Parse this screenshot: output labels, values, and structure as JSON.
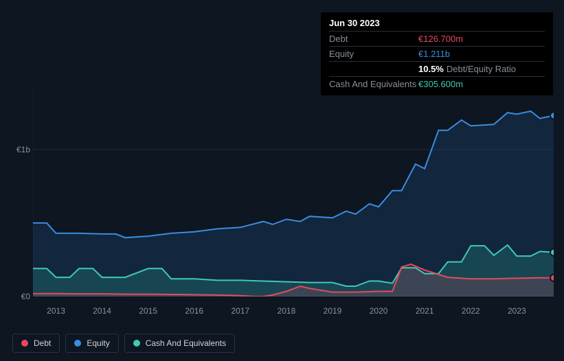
{
  "tooltip": {
    "date": "Jun 30 2023",
    "rows": {
      "debt": {
        "label": "Debt",
        "value": "€126.700m"
      },
      "equity": {
        "label": "Equity",
        "value": "€1.211b"
      },
      "ratio": {
        "pct": "10.5%",
        "label": "Debt/Equity Ratio"
      },
      "cash": {
        "label": "Cash And Equivalents",
        "value": "€305.600m"
      }
    }
  },
  "chart": {
    "type": "area",
    "background_color": "#0e1621",
    "grid_color": "#202a35",
    "ylim": [
      0,
      1400
    ],
    "y_ticks": [
      {
        "v": 0,
        "label": "€0"
      },
      {
        "v": 1000,
        "label": "€1b"
      }
    ],
    "x": {
      "min": 2012.5,
      "max": 2023.8,
      "ticks": [
        2013,
        2014,
        2015,
        2016,
        2017,
        2018,
        2019,
        2020,
        2021,
        2022,
        2023
      ]
    },
    "cursor_x": 2023.5,
    "series": {
      "debt": {
        "label": "Debt",
        "color": "#e8495f",
        "points": [
          [
            2012.5,
            20
          ],
          [
            2013.0,
            20
          ],
          [
            2013.5,
            18
          ],
          [
            2014.0,
            18
          ],
          [
            2014.5,
            16
          ],
          [
            2015.0,
            16
          ],
          [
            2015.5,
            14
          ],
          [
            2016.0,
            12
          ],
          [
            2016.5,
            10
          ],
          [
            2017.0,
            6
          ],
          [
            2017.3,
            0
          ],
          [
            2017.5,
            0
          ],
          [
            2017.7,
            10
          ],
          [
            2018.0,
            35
          ],
          [
            2018.3,
            70
          ],
          [
            2018.5,
            55
          ],
          [
            2019.0,
            30
          ],
          [
            2019.5,
            30
          ],
          [
            2020.0,
            35
          ],
          [
            2020.3,
            35
          ],
          [
            2020.5,
            200
          ],
          [
            2020.7,
            220
          ],
          [
            2021.0,
            180
          ],
          [
            2021.5,
            130
          ],
          [
            2022.0,
            120
          ],
          [
            2022.5,
            120
          ],
          [
            2023.0,
            124
          ],
          [
            2023.5,
            127
          ],
          [
            2023.8,
            127
          ]
        ]
      },
      "equity": {
        "label": "Equity",
        "color": "#3a8de0",
        "points": [
          [
            2012.5,
            500
          ],
          [
            2012.8,
            500
          ],
          [
            2013.0,
            430
          ],
          [
            2013.5,
            430
          ],
          [
            2014.0,
            425
          ],
          [
            2014.3,
            425
          ],
          [
            2014.5,
            400
          ],
          [
            2015.0,
            410
          ],
          [
            2015.5,
            430
          ],
          [
            2016.0,
            440
          ],
          [
            2016.5,
            460
          ],
          [
            2017.0,
            470
          ],
          [
            2017.5,
            510
          ],
          [
            2017.7,
            490
          ],
          [
            2018.0,
            525
          ],
          [
            2018.3,
            510
          ],
          [
            2018.5,
            545
          ],
          [
            2019.0,
            535
          ],
          [
            2019.3,
            580
          ],
          [
            2019.5,
            560
          ],
          [
            2019.8,
            630
          ],
          [
            2020.0,
            610
          ],
          [
            2020.3,
            720
          ],
          [
            2020.5,
            720
          ],
          [
            2020.8,
            900
          ],
          [
            2021.0,
            870
          ],
          [
            2021.3,
            1130
          ],
          [
            2021.5,
            1130
          ],
          [
            2021.8,
            1200
          ],
          [
            2022.0,
            1160
          ],
          [
            2022.5,
            1170
          ],
          [
            2022.8,
            1250
          ],
          [
            2023.0,
            1240
          ],
          [
            2023.3,
            1260
          ],
          [
            2023.5,
            1211
          ],
          [
            2023.8,
            1230
          ]
        ]
      },
      "cash": {
        "label": "Cash And Equivalents",
        "color": "#3fcab5",
        "points": [
          [
            2012.5,
            190
          ],
          [
            2012.8,
            190
          ],
          [
            2013.0,
            130
          ],
          [
            2013.3,
            130
          ],
          [
            2013.5,
            190
          ],
          [
            2013.8,
            190
          ],
          [
            2014.0,
            130
          ],
          [
            2014.5,
            130
          ],
          [
            2015.0,
            190
          ],
          [
            2015.3,
            190
          ],
          [
            2015.5,
            120
          ],
          [
            2016.0,
            120
          ],
          [
            2016.5,
            110
          ],
          [
            2017.0,
            110
          ],
          [
            2017.5,
            105
          ],
          [
            2018.0,
            100
          ],
          [
            2018.5,
            95
          ],
          [
            2019.0,
            95
          ],
          [
            2019.3,
            70
          ],
          [
            2019.5,
            70
          ],
          [
            2019.8,
            105
          ],
          [
            2020.0,
            105
          ],
          [
            2020.3,
            90
          ],
          [
            2020.5,
            195
          ],
          [
            2020.8,
            195
          ],
          [
            2021.0,
            155
          ],
          [
            2021.3,
            155
          ],
          [
            2021.5,
            235
          ],
          [
            2021.8,
            235
          ],
          [
            2022.0,
            345
          ],
          [
            2022.3,
            345
          ],
          [
            2022.5,
            280
          ],
          [
            2022.8,
            350
          ],
          [
            2023.0,
            275
          ],
          [
            2023.3,
            275
          ],
          [
            2023.5,
            306
          ],
          [
            2023.8,
            300
          ]
        ]
      }
    }
  },
  "legend": {
    "items": [
      {
        "key": "debt",
        "label": "Debt",
        "color": "#e8495f"
      },
      {
        "key": "equity",
        "label": "Equity",
        "color": "#3a8de0"
      },
      {
        "key": "cash",
        "label": "Cash And Equivalents",
        "color": "#3fcab5"
      }
    ]
  }
}
